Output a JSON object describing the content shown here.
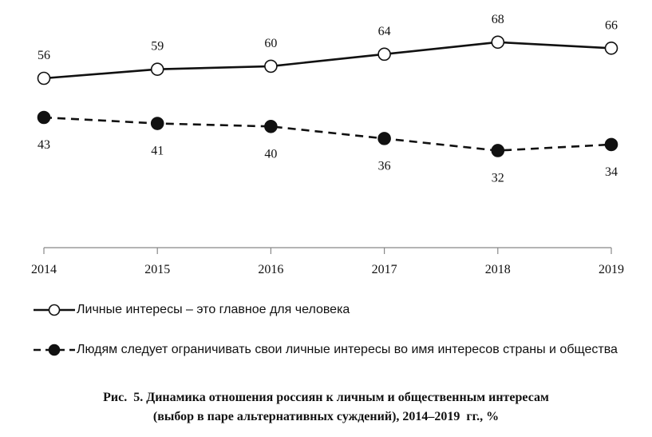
{
  "chart_data": {
    "type": "line",
    "x": [
      "2014",
      "2015",
      "2016",
      "2017",
      "2018",
      "2019"
    ],
    "series": [
      {
        "name": "Личные интересы – это главное для человека",
        "values": [
          56,
          59,
          60,
          64,
          68,
          66
        ],
        "marker": "open-circle",
        "line_style": "solid",
        "label_position": "above",
        "color": "#111111"
      },
      {
        "name": "Людям следует ограничивать свои личные интересы во имя интересов страны и общества",
        "values": [
          43,
          41,
          40,
          36,
          32,
          34
        ],
        "marker": "filled-circle",
        "line_style": "dashed",
        "label_position": "below",
        "color": "#111111"
      }
    ],
    "ylim": [
      0,
      72
    ],
    "grid": false,
    "legend_placement": "bottom",
    "xlabel": "",
    "ylabel": ""
  },
  "caption": {
    "line1": "Рис.  5. Динамика отношения россиян к личным и общественным интересам",
    "line2": "(выбор в паре альтернативных суждений), 2014–2019  гг., %"
  }
}
